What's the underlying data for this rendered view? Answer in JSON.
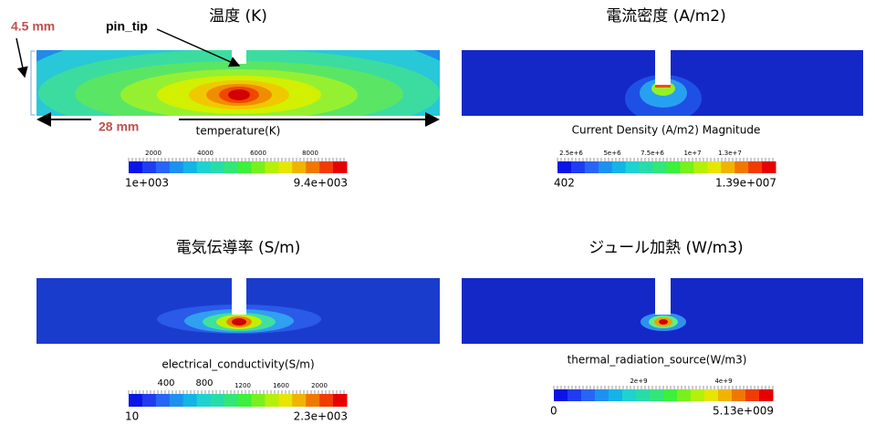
{
  "annotations": {
    "height": "4.5 mm",
    "pin": "pin_tip",
    "width": "28 mm"
  },
  "panels": [
    {
      "title": "温度 (K)",
      "label": "temperature(K)",
      "ticks": [
        "2000",
        "4000",
        "6000",
        "8000"
      ],
      "min": "1e+003",
      "max": "9.4e+003"
    },
    {
      "title": "電流密度 (A/m2)",
      "label": "Current Density (A/m2) Magnitude",
      "ticks": [
        "2.5e+6",
        "5e+6",
        "7.5e+6",
        "1e+7",
        "1.3e+7"
      ],
      "min": "402",
      "max": "1.39e+007"
    },
    {
      "title": "電気伝導率 (S/m)",
      "label": "electrical_conductivity(S/m)",
      "ticks": [
        "400",
        "800",
        "1200",
        "1600",
        "2000"
      ],
      "min": "10",
      "max": "2.3e+003"
    },
    {
      "title": "ジュール加熱 (W/m3)",
      "label": "thermal_radiation_source(W/m3)",
      "ticks": [
        "2e+9",
        "4e+9"
      ],
      "min": "0",
      "max": "5.13e+009"
    }
  ]
}
